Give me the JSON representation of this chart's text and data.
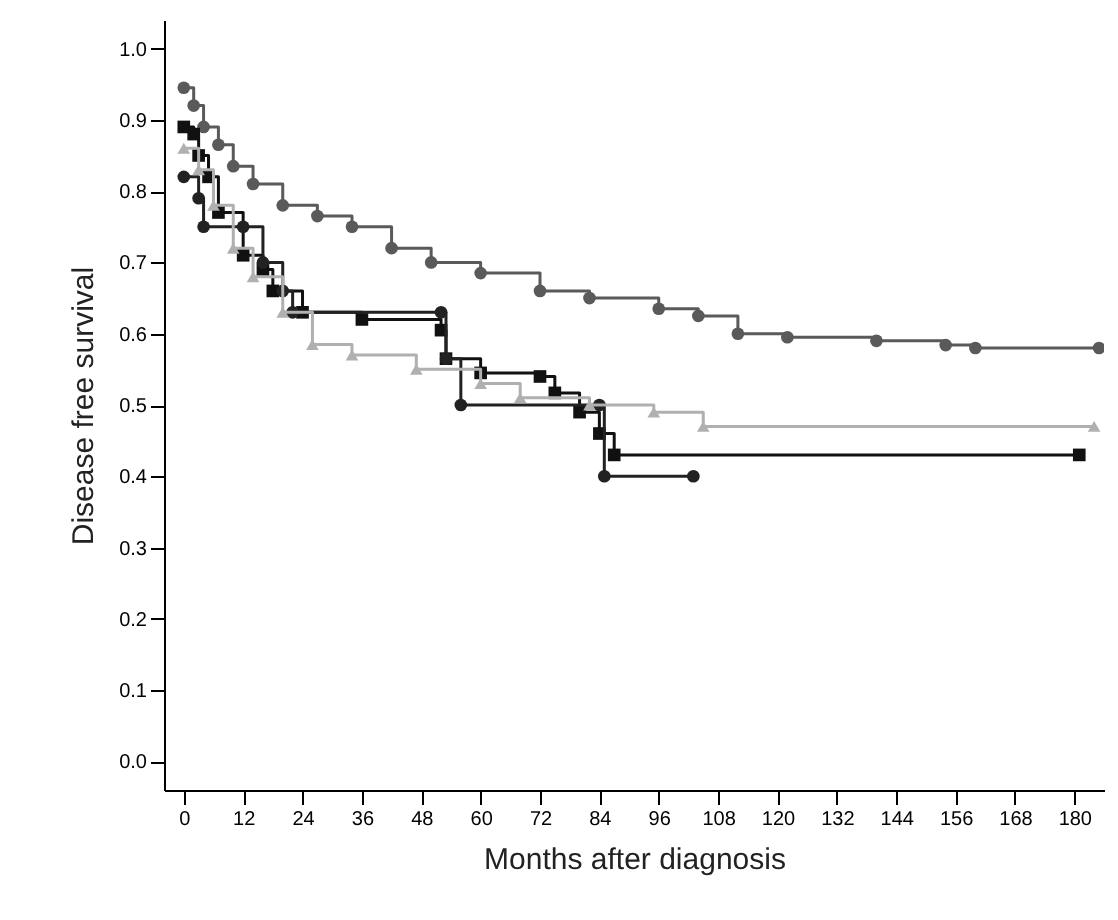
{
  "chart_data": {
    "type": "step",
    "xlabel": "Months after diagnosis",
    "ylabel": "Disease free survival",
    "x": [
      0,
      2,
      4,
      7,
      10,
      14,
      20,
      27,
      34,
      42,
      50,
      60,
      72,
      82,
      96,
      104,
      112,
      122,
      140,
      154,
      160,
      185
    ],
    "series": [
      {
        "color": "#5a5a5a",
        "marker": "circle",
        "values": [
          0.945,
          0.92,
          0.89,
          0.865,
          0.835,
          0.81,
          0.78,
          0.765,
          0.75,
          0.72,
          0.7,
          0.685,
          0.66,
          0.65,
          0.635,
          0.625,
          0.6,
          0.595,
          0.59,
          0.584,
          0.58,
          0.58
        ]
      },
      {
        "color": "#111111",
        "marker": "square",
        "x": [
          0,
          2,
          3,
          5,
          7,
          12,
          16,
          18,
          24,
          36,
          52,
          53,
          60,
          72,
          75,
          80,
          84,
          87,
          181
        ],
        "values": [
          0.89,
          0.88,
          0.85,
          0.82,
          0.77,
          0.71,
          0.69,
          0.66,
          0.63,
          0.62,
          0.605,
          0.565,
          0.545,
          0.54,
          0.517,
          0.49,
          0.46,
          0.43,
          0.43
        ]
      },
      {
        "color": "#222222",
        "marker": "circle",
        "x": [
          0,
          3,
          4,
          12,
          16,
          20,
          22,
          52,
          53,
          56,
          84,
          85,
          103
        ],
        "values": [
          0.82,
          0.79,
          0.75,
          0.75,
          0.7,
          0.66,
          0.63,
          0.63,
          0.565,
          0.5,
          0.5,
          0.4,
          0.4
        ]
      },
      {
        "color": "#b0b0b0",
        "marker": "triangle",
        "x": [
          0,
          3,
          6,
          10,
          14,
          20,
          26,
          34,
          47,
          60,
          68,
          82,
          95,
          105,
          184
        ],
        "values": [
          0.86,
          0.83,
          0.78,
          0.72,
          0.68,
          0.63,
          0.585,
          0.57,
          0.55,
          0.53,
          0.51,
          0.5,
          0.49,
          0.47,
          0.47
        ]
      }
    ],
    "xlim": [
      -4,
      186
    ],
    "ylim": [
      -0.04,
      1.04
    ],
    "xticks": [
      0,
      12,
      24,
      36,
      48,
      60,
      72,
      84,
      96,
      108,
      120,
      132,
      144,
      156,
      168,
      180
    ],
    "yticks": [
      {
        "value": 0,
        "label": "0.0"
      },
      0.1,
      0.2,
      0.3,
      0.4,
      0.5,
      0.6,
      0.7,
      0.8,
      0.9,
      {
        "value": 1,
        "label": "1.0"
      }
    ],
    "grid": false
  }
}
